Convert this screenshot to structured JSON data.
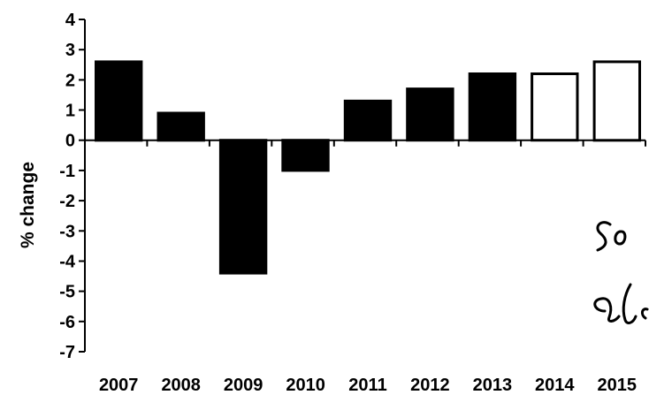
{
  "chart_data": {
    "type": "bar",
    "categories": [
      "2007",
      "2008",
      "2009",
      "2010",
      "2011",
      "2012",
      "2013",
      "2014",
      "2015"
    ],
    "values": [
      2.6,
      0.9,
      -4.4,
      -1.0,
      1.3,
      1.7,
      2.2,
      2.2,
      2.6
    ],
    "bar_styles": [
      "filled",
      "filled",
      "filled",
      "filled",
      "filled",
      "filled",
      "filled",
      "outline",
      "outline"
    ],
    "colors": {
      "filled": "#000000",
      "outline_fill": "#ffffff",
      "stroke": "#000000"
    },
    "title": "",
    "xlabel": "",
    "ylabel": "% change",
    "ylim": [
      -7,
      4
    ],
    "yticks": [
      4,
      3,
      2,
      1,
      0,
      -1,
      -2,
      -3,
      -4,
      -5,
      -6,
      -7
    ],
    "grid": false,
    "legend": "none"
  }
}
